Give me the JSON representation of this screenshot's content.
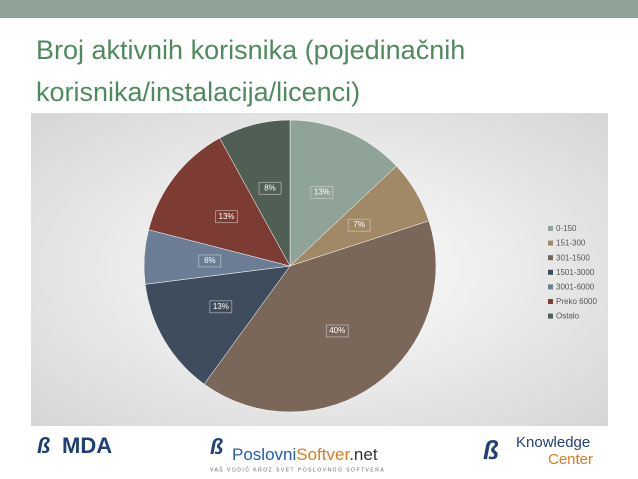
{
  "slide": {
    "title_lines": [
      "Broj aktivnih korisnika (pojedinačnih",
      "korisnika/instalacija/licenci)"
    ]
  },
  "chart_data": {
    "type": "pie",
    "categories": [
      "0-150",
      "151-300",
      "301-1500",
      "1501-3000",
      "3001-6000",
      "Preko 6000",
      "Ostalo"
    ],
    "values": [
      13,
      7,
      40,
      13,
      6,
      13,
      8
    ],
    "value_labels": [
      "13%",
      "7%",
      "40%",
      "13%",
      "6%",
      "13%",
      "8%"
    ],
    "colors": [
      "#8fa398",
      "#a18866",
      "#7b665a",
      "#3f4c5d",
      "#6c7e95",
      "#7d3c33",
      "#505f54"
    ],
    "legend": "right"
  },
  "footer": {
    "logo1": "MDA",
    "logo2": [
      "Poslovni",
      "Softver",
      ".net"
    ],
    "logo2_tagline": "VAŠ VODIČ KROZ SVET POSLOVNOG SOFTVERA",
    "logo3": [
      "Knowledge",
      "Center"
    ]
  }
}
